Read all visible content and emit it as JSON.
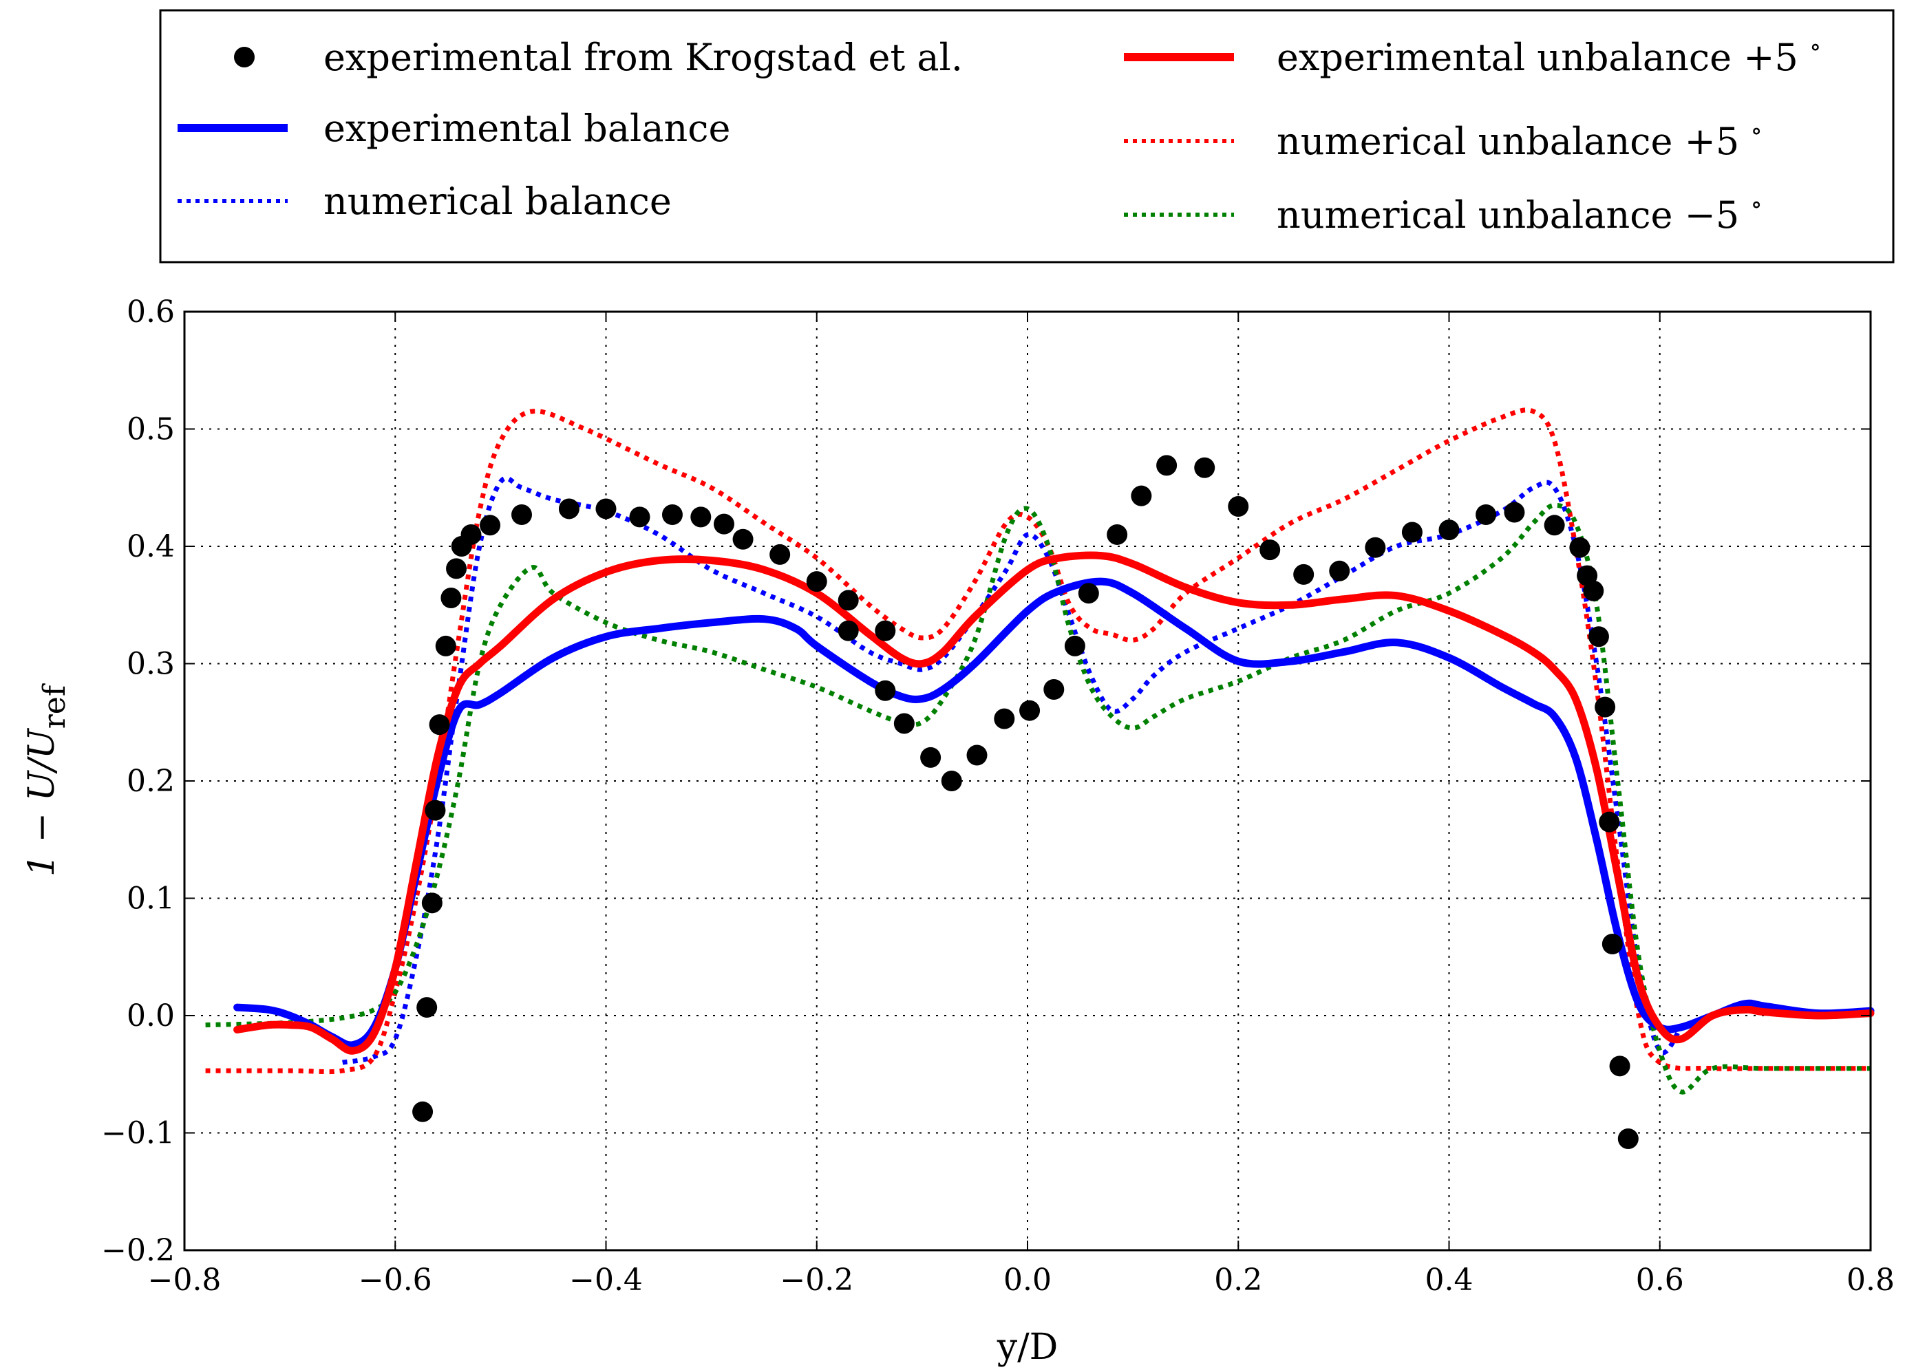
{
  "chart_data": {
    "type": "line",
    "title": "",
    "xlabel": "y/D",
    "ylabel": "1 − U/U_ref",
    "ylabel_main": "1 − U/U",
    "ylabel_sub": "ref",
    "xlim": [
      -0.8,
      0.8
    ],
    "ylim": [
      -0.2,
      0.6
    ],
    "xticks": [
      -0.8,
      -0.6,
      -0.4,
      -0.2,
      0.0,
      0.2,
      0.4,
      0.6,
      0.8
    ],
    "yticks": [
      -0.2,
      -0.1,
      0.0,
      0.1,
      0.2,
      0.3,
      0.4,
      0.5,
      0.6
    ],
    "xtick_labels": [
      "−0.8",
      "−0.6",
      "−0.4",
      "−0.2",
      "0.0",
      "0.2",
      "0.4",
      "0.6",
      "0.8"
    ],
    "ytick_labels": [
      "−0.2",
      "−0.1",
      "0.0",
      "0.1",
      "0.2",
      "0.3",
      "0.4",
      "0.5",
      "0.6"
    ],
    "grid": true,
    "legend_position": "top, outside, two columns",
    "series": [
      {
        "name": "experimental from Krogstad et al.",
        "legend_label": "experimental from Krogstad et al.",
        "style": "markers",
        "color": "#000000",
        "points": [
          [
            -0.574,
            -0.082
          ],
          [
            -0.57,
            0.007
          ],
          [
            -0.565,
            0.096
          ],
          [
            -0.562,
            0.175
          ],
          [
            -0.558,
            0.248
          ],
          [
            -0.552,
            0.315
          ],
          [
            -0.547,
            0.356
          ],
          [
            -0.542,
            0.381
          ],
          [
            -0.537,
            0.4
          ],
          [
            -0.528,
            0.41
          ],
          [
            -0.51,
            0.418
          ],
          [
            -0.48,
            0.427
          ],
          [
            -0.435,
            0.432
          ],
          [
            -0.4,
            0.432
          ],
          [
            -0.368,
            0.425
          ],
          [
            -0.337,
            0.427
          ],
          [
            -0.31,
            0.425
          ],
          [
            -0.288,
            0.419
          ],
          [
            -0.27,
            0.406
          ],
          [
            -0.235,
            0.393
          ],
          [
            -0.2,
            0.37
          ],
          [
            -0.17,
            0.354
          ],
          [
            -0.17,
            0.328
          ],
          [
            -0.135,
            0.328
          ],
          [
            -0.135,
            0.277
          ],
          [
            -0.117,
            0.249
          ],
          [
            -0.092,
            0.22
          ],
          [
            -0.072,
            0.2
          ],
          [
            -0.048,
            0.222
          ],
          [
            -0.022,
            0.253
          ],
          [
            0.002,
            0.26
          ],
          [
            0.025,
            0.278
          ],
          [
            0.045,
            0.315
          ],
          [
            0.058,
            0.36
          ],
          [
            0.085,
            0.41
          ],
          [
            0.108,
            0.443
          ],
          [
            0.132,
            0.469
          ],
          [
            0.168,
            0.467
          ],
          [
            0.2,
            0.434
          ],
          [
            0.23,
            0.397
          ],
          [
            0.262,
            0.376
          ],
          [
            0.296,
            0.379
          ],
          [
            0.33,
            0.399
          ],
          [
            0.365,
            0.412
          ],
          [
            0.4,
            0.414
          ],
          [
            0.435,
            0.427
          ],
          [
            0.462,
            0.429
          ],
          [
            0.5,
            0.418
          ],
          [
            0.524,
            0.399
          ],
          [
            0.531,
            0.375
          ],
          [
            0.537,
            0.362
          ],
          [
            0.542,
            0.323
          ],
          [
            0.548,
            0.263
          ],
          [
            0.552,
            0.165
          ],
          [
            0.555,
            0.061
          ],
          [
            0.562,
            -0.043
          ],
          [
            0.57,
            -0.105
          ]
        ]
      },
      {
        "name": "experimental balance",
        "legend_label": "experimental balance",
        "style": "solid",
        "color": "#0000ff",
        "x": [
          -0.75,
          -0.72,
          -0.7,
          -0.68,
          -0.66,
          -0.64,
          -0.62,
          -0.6,
          -0.58,
          -0.56,
          -0.54,
          -0.52,
          -0.5,
          -0.45,
          -0.4,
          -0.35,
          -0.3,
          -0.25,
          -0.22,
          -0.2,
          -0.15,
          -0.12,
          -0.1,
          -0.08,
          -0.05,
          0.0,
          0.03,
          0.07,
          0.1,
          0.15,
          0.2,
          0.25,
          0.3,
          0.35,
          0.4,
          0.45,
          0.48,
          0.5,
          0.52,
          0.54,
          0.56,
          0.58,
          0.6,
          0.62,
          0.65,
          0.68,
          0.7,
          0.75,
          0.8
        ],
        "values": [
          0.007,
          0.005,
          0.0,
          -0.008,
          -0.018,
          -0.025,
          -0.01,
          0.04,
          0.12,
          0.2,
          0.26,
          0.265,
          0.275,
          0.305,
          0.323,
          0.33,
          0.335,
          0.338,
          0.33,
          0.315,
          0.285,
          0.272,
          0.27,
          0.278,
          0.3,
          0.345,
          0.362,
          0.37,
          0.36,
          0.33,
          0.302,
          0.302,
          0.31,
          0.318,
          0.305,
          0.28,
          0.266,
          0.255,
          0.22,
          0.15,
          0.07,
          0.01,
          -0.01,
          -0.01,
          0.0,
          0.01,
          0.008,
          0.002,
          0.004
        ]
      },
      {
        "name": "numerical balance",
        "legend_label": "numerical balance",
        "style": "dotted",
        "color": "#0000ff",
        "x": [
          -0.65,
          -0.62,
          -0.6,
          -0.58,
          -0.56,
          -0.54,
          -0.52,
          -0.5,
          -0.48,
          -0.45,
          -0.4,
          -0.35,
          -0.3,
          -0.25,
          -0.2,
          -0.15,
          -0.12,
          -0.1,
          -0.08,
          -0.05,
          -0.02,
          0.0,
          0.02,
          0.04,
          0.06,
          0.08,
          0.1,
          0.12,
          0.15,
          0.2,
          0.25,
          0.3,
          0.35,
          0.4,
          0.45,
          0.48,
          0.5,
          0.52,
          0.54,
          0.56,
          0.58,
          0.6,
          0.62
        ],
        "values": [
          -0.04,
          -0.035,
          -0.02,
          0.05,
          0.15,
          0.28,
          0.4,
          0.455,
          0.45,
          0.44,
          0.43,
          0.41,
          0.38,
          0.36,
          0.34,
          0.31,
          0.3,
          0.295,
          0.305,
          0.34,
          0.38,
          0.41,
          0.39,
          0.34,
          0.29,
          0.26,
          0.27,
          0.29,
          0.31,
          0.33,
          0.35,
          0.375,
          0.4,
          0.41,
          0.43,
          0.45,
          0.45,
          0.4,
          0.3,
          0.17,
          0.04,
          -0.03,
          -0.01
        ]
      },
      {
        "name": "experimental unbalance +5°",
        "legend_label": "experimental unbalance +5",
        "style": "solid",
        "color": "#ff0000",
        "x": [
          -0.75,
          -0.72,
          -0.7,
          -0.68,
          -0.66,
          -0.64,
          -0.62,
          -0.6,
          -0.58,
          -0.56,
          -0.54,
          -0.52,
          -0.5,
          -0.45,
          -0.4,
          -0.35,
          -0.3,
          -0.25,
          -0.2,
          -0.15,
          -0.12,
          -0.1,
          -0.08,
          -0.05,
          0.0,
          0.03,
          0.07,
          0.1,
          0.15,
          0.2,
          0.25,
          0.3,
          0.35,
          0.4,
          0.45,
          0.48,
          0.5,
          0.52,
          0.54,
          0.56,
          0.58,
          0.6,
          0.62,
          0.65,
          0.68,
          0.7,
          0.75,
          0.8
        ],
        "values": [
          -0.012,
          -0.008,
          -0.008,
          -0.01,
          -0.02,
          -0.03,
          -0.015,
          0.04,
          0.13,
          0.22,
          0.28,
          0.3,
          0.315,
          0.355,
          0.378,
          0.388,
          0.388,
          0.38,
          0.36,
          0.325,
          0.305,
          0.3,
          0.31,
          0.34,
          0.38,
          0.39,
          0.392,
          0.385,
          0.365,
          0.352,
          0.35,
          0.355,
          0.358,
          0.345,
          0.325,
          0.31,
          0.295,
          0.27,
          0.21,
          0.12,
          0.03,
          -0.01,
          -0.02,
          0.0,
          0.005,
          0.003,
          0.0,
          0.002
        ]
      },
      {
        "name": "numerical unbalance +5°",
        "legend_label": "numerical unbalance +5",
        "style": "dotted",
        "color": "#ff0000",
        "x": [
          -0.78,
          -0.7,
          -0.65,
          -0.62,
          -0.6,
          -0.58,
          -0.56,
          -0.54,
          -0.52,
          -0.5,
          -0.47,
          -0.42,
          -0.35,
          -0.3,
          -0.25,
          -0.2,
          -0.15,
          -0.12,
          -0.1,
          -0.08,
          -0.05,
          -0.02,
          0.0,
          0.02,
          0.04,
          0.06,
          0.08,
          0.1,
          0.12,
          0.15,
          0.2,
          0.25,
          0.3,
          0.35,
          0.4,
          0.45,
          0.48,
          0.5,
          0.52,
          0.54,
          0.56,
          0.58,
          0.6,
          0.65,
          0.7,
          0.8
        ],
        "values": [
          -0.047,
          -0.047,
          -0.047,
          -0.035,
          0.02,
          0.1,
          0.2,
          0.32,
          0.43,
          0.49,
          0.515,
          0.5,
          0.47,
          0.45,
          0.42,
          0.39,
          0.35,
          0.33,
          0.322,
          0.33,
          0.37,
          0.42,
          0.425,
          0.4,
          0.35,
          0.33,
          0.325,
          0.32,
          0.33,
          0.36,
          0.39,
          0.42,
          0.44,
          0.465,
          0.49,
          0.51,
          0.515,
          0.49,
          0.4,
          0.28,
          0.13,
          0.0,
          -0.04,
          -0.045,
          -0.045,
          -0.045
        ]
      },
      {
        "name": "numerical unbalance −5°",
        "legend_label": "numerical unbalance −5",
        "style": "dotted",
        "color": "#008000",
        "x": [
          -0.78,
          -0.7,
          -0.65,
          -0.62,
          -0.6,
          -0.58,
          -0.56,
          -0.54,
          -0.52,
          -0.5,
          -0.47,
          -0.45,
          -0.4,
          -0.35,
          -0.3,
          -0.25,
          -0.2,
          -0.15,
          -0.12,
          -0.1,
          -0.08,
          -0.05,
          -0.02,
          0.0,
          0.02,
          0.04,
          0.06,
          0.08,
          0.1,
          0.12,
          0.15,
          0.2,
          0.25,
          0.3,
          0.35,
          0.4,
          0.45,
          0.48,
          0.5,
          0.52,
          0.54,
          0.56,
          0.58,
          0.6,
          0.62,
          0.65,
          0.7,
          0.8
        ],
        "values": [
          -0.008,
          -0.006,
          -0.002,
          0.005,
          0.02,
          0.06,
          0.12,
          0.2,
          0.3,
          0.35,
          0.382,
          0.36,
          0.335,
          0.32,
          0.31,
          0.295,
          0.28,
          0.26,
          0.25,
          0.25,
          0.27,
          0.32,
          0.41,
          0.432,
          0.4,
          0.33,
          0.28,
          0.255,
          0.245,
          0.255,
          0.27,
          0.285,
          0.305,
          0.32,
          0.345,
          0.36,
          0.39,
          0.42,
          0.435,
          0.42,
          0.35,
          0.2,
          0.05,
          -0.03,
          -0.065,
          -0.045,
          -0.045,
          -0.045
        ]
      }
    ]
  }
}
